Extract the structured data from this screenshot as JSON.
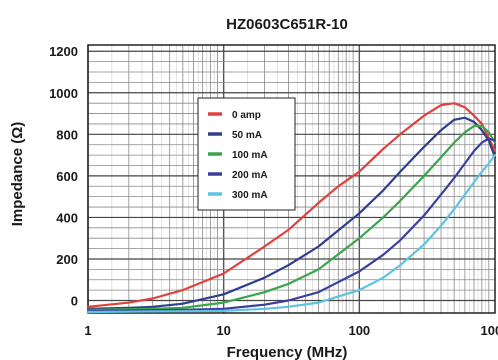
{
  "chart_data": {
    "type": "line",
    "title": "HZ0603C651R-10",
    "xlabel": "Frequency (MHz)",
    "ylabel": "Impedance (Ω)",
    "x_scale": "log",
    "xlim": [
      1,
      1000
    ],
    "ylim": [
      -60,
      1230
    ],
    "x_ticks": [
      1,
      10,
      100,
      1000
    ],
    "x_tick_labels": [
      "1",
      "10",
      "100",
      "1000"
    ],
    "y_ticks": [
      0,
      200,
      400,
      600,
      800,
      1000,
      1200
    ],
    "y_tick_labels": [
      "0",
      "200",
      "400",
      "600",
      "800",
      "1000",
      "1200"
    ],
    "grid": true,
    "legend_position": "upper-middle",
    "series": [
      {
        "name": "0 amp",
        "color": "#e0413c",
        "x": [
          1,
          2,
          3,
          5,
          10,
          20,
          30,
          50,
          70,
          100,
          150,
          200,
          300,
          400,
          500,
          600,
          700,
          800,
          1000
        ],
        "y": [
          -30,
          -10,
          10,
          50,
          130,
          260,
          340,
          470,
          550,
          620,
          730,
          800,
          890,
          940,
          950,
          930,
          890,
          850,
          720
        ]
      },
      {
        "name": "50 mA",
        "color": "#2d3f8e",
        "x": [
          1,
          2,
          3,
          5,
          10,
          20,
          30,
          50,
          100,
          150,
          200,
          300,
          400,
          500,
          600,
          700,
          800,
          900,
          1000
        ],
        "y": [
          -40,
          -35,
          -30,
          -15,
          30,
          110,
          170,
          260,
          420,
          530,
          620,
          740,
          820,
          870,
          880,
          860,
          820,
          770,
          690
        ]
      },
      {
        "name": "100 mA",
        "color": "#3aa64a",
        "x": [
          1,
          3,
          5,
          10,
          20,
          30,
          50,
          100,
          150,
          200,
          300,
          400,
          500,
          600,
          700,
          800,
          900,
          1000
        ],
        "y": [
          -45,
          -40,
          -35,
          -10,
          40,
          80,
          150,
          300,
          400,
          480,
          600,
          690,
          760,
          810,
          840,
          840,
          810,
          760
        ]
      },
      {
        "name": "200 mA",
        "color": "#3a3f9e",
        "x": [
          1,
          5,
          10,
          20,
          30,
          50,
          100,
          150,
          200,
          300,
          400,
          500,
          600,
          700,
          800,
          900,
          1000
        ],
        "y": [
          -50,
          -45,
          -40,
          -20,
          0,
          40,
          140,
          220,
          290,
          410,
          510,
          590,
          660,
          720,
          760,
          780,
          770
        ]
      },
      {
        "name": "300 mA",
        "color": "#5ec3df",
        "x": [
          1,
          10,
          20,
          30,
          50,
          100,
          150,
          200,
          300,
          400,
          500,
          600,
          700,
          800,
          900,
          1000
        ],
        "y": [
          -55,
          -50,
          -40,
          -30,
          -10,
          50,
          110,
          170,
          270,
          360,
          440,
          510,
          570,
          620,
          660,
          700
        ]
      }
    ]
  }
}
